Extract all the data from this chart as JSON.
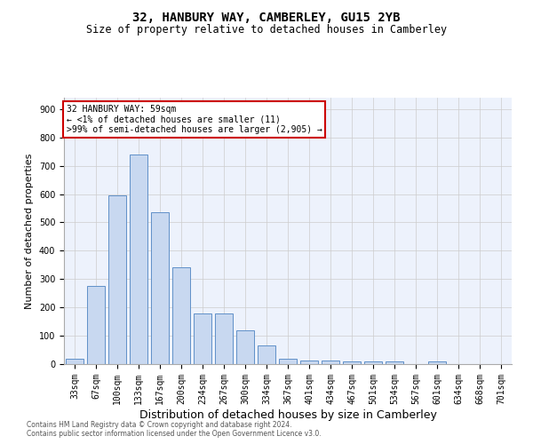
{
  "title": "32, HANBURY WAY, CAMBERLEY, GU15 2YB",
  "subtitle": "Size of property relative to detached houses in Camberley",
  "xlabel": "Distribution of detached houses by size in Camberley",
  "ylabel": "Number of detached properties",
  "categories": [
    "33sqm",
    "67sqm",
    "100sqm",
    "133sqm",
    "167sqm",
    "200sqm",
    "234sqm",
    "267sqm",
    "300sqm",
    "334sqm",
    "367sqm",
    "401sqm",
    "434sqm",
    "467sqm",
    "501sqm",
    "534sqm",
    "567sqm",
    "601sqm",
    "634sqm",
    "668sqm",
    "701sqm"
  ],
  "bar_heights": [
    20,
    275,
    595,
    740,
    535,
    340,
    178,
    178,
    118,
    67,
    20,
    12,
    12,
    9,
    9,
    9,
    0,
    9,
    0,
    0,
    0
  ],
  "bar_color": "#c8d8f0",
  "bar_edge_color": "#6090c8",
  "background_color": "#edf2fc",
  "grid_color": "#cccccc",
  "annotation_line1": "32 HANBURY WAY: 59sqm",
  "annotation_line2": "← <1% of detached houses are smaller (11)",
  "annotation_line3": ">99% of semi-detached houses are larger (2,905) →",
  "annotation_box_facecolor": "#ffffff",
  "annotation_box_edgecolor": "#cc0000",
  "ylim_max": 940,
  "yticks": [
    0,
    100,
    200,
    300,
    400,
    500,
    600,
    700,
    800,
    900
  ],
  "title_fontsize": 10,
  "subtitle_fontsize": 8.5,
  "ylabel_fontsize": 8,
  "xlabel_fontsize": 9,
  "tick_fontsize": 7,
  "footer_line1": "Contains HM Land Registry data © Crown copyright and database right 2024.",
  "footer_line2": "Contains public sector information licensed under the Open Government Licence v3.0."
}
